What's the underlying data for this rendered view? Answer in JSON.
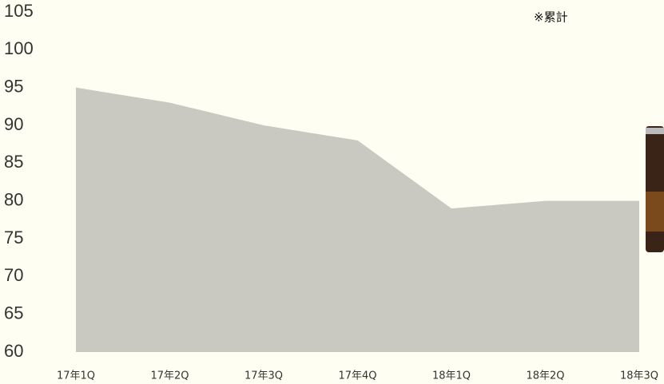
{
  "chart_data": {
    "type": "area",
    "annotation": "※累計",
    "categories": [
      "17年1Q",
      "17年2Q",
      "17年3Q",
      "17年4Q",
      "18年1Q",
      "18年2Q",
      "18年3Q"
    ],
    "values": [
      95,
      93,
      90,
      88,
      79,
      80,
      80
    ],
    "color": "#c9c9c1",
    "ylim": [
      60,
      105
    ],
    "yticks": [
      60,
      65,
      70,
      75,
      80,
      85,
      90,
      95,
      100,
      105
    ],
    "grid": false
  }
}
